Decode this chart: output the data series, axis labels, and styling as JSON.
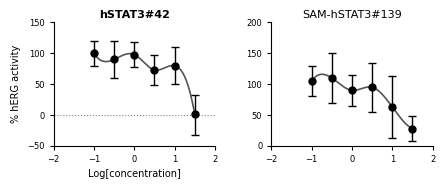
{
  "plot1": {
    "title": "hSTAT3#42",
    "x": [
      -1,
      -0.5,
      0,
      0.5,
      1,
      1.5
    ],
    "y": [
      100,
      90,
      98,
      73,
      80,
      2
    ],
    "yerr_low": [
      20,
      30,
      20,
      25,
      30,
      35
    ],
    "yerr_high": [
      20,
      30,
      20,
      25,
      30,
      30
    ],
    "xlim": [
      -2,
      2
    ],
    "ylim": [
      -50,
      150
    ],
    "yticks": [
      -50,
      0,
      50,
      100,
      150
    ],
    "xticks": [
      -2,
      -1,
      0,
      1,
      2
    ],
    "xlabel": "Log[concentration]",
    "ylabel": "% hERG activity",
    "hline_y": 0,
    "curve_x": [
      -1,
      -0.5,
      0,
      0.5,
      1,
      1.5
    ],
    "curve_y": [
      100,
      90,
      98,
      73,
      80,
      2
    ]
  },
  "plot2": {
    "title": "SAM-hSTAT3#139",
    "x": [
      -1,
      -0.5,
      0,
      0.5,
      1,
      1.5
    ],
    "y": [
      105,
      110,
      90,
      95,
      63,
      28
    ],
    "yerr_low": [
      25,
      40,
      25,
      40,
      50,
      20
    ],
    "yerr_high": [
      25,
      40,
      25,
      40,
      50,
      20
    ],
    "xlim": [
      -2,
      2
    ],
    "ylim": [
      0,
      200
    ],
    "yticks": [
      0,
      50,
      100,
      150,
      200
    ],
    "xticks": [
      -2,
      -1,
      0,
      1,
      2
    ],
    "xlabel": "",
    "ylabel": ""
  },
  "line_color": "#555555",
  "marker_color": "black",
  "marker_size": 5,
  "capsize": 3,
  "elinewidth": 1,
  "ecolor": "black"
}
